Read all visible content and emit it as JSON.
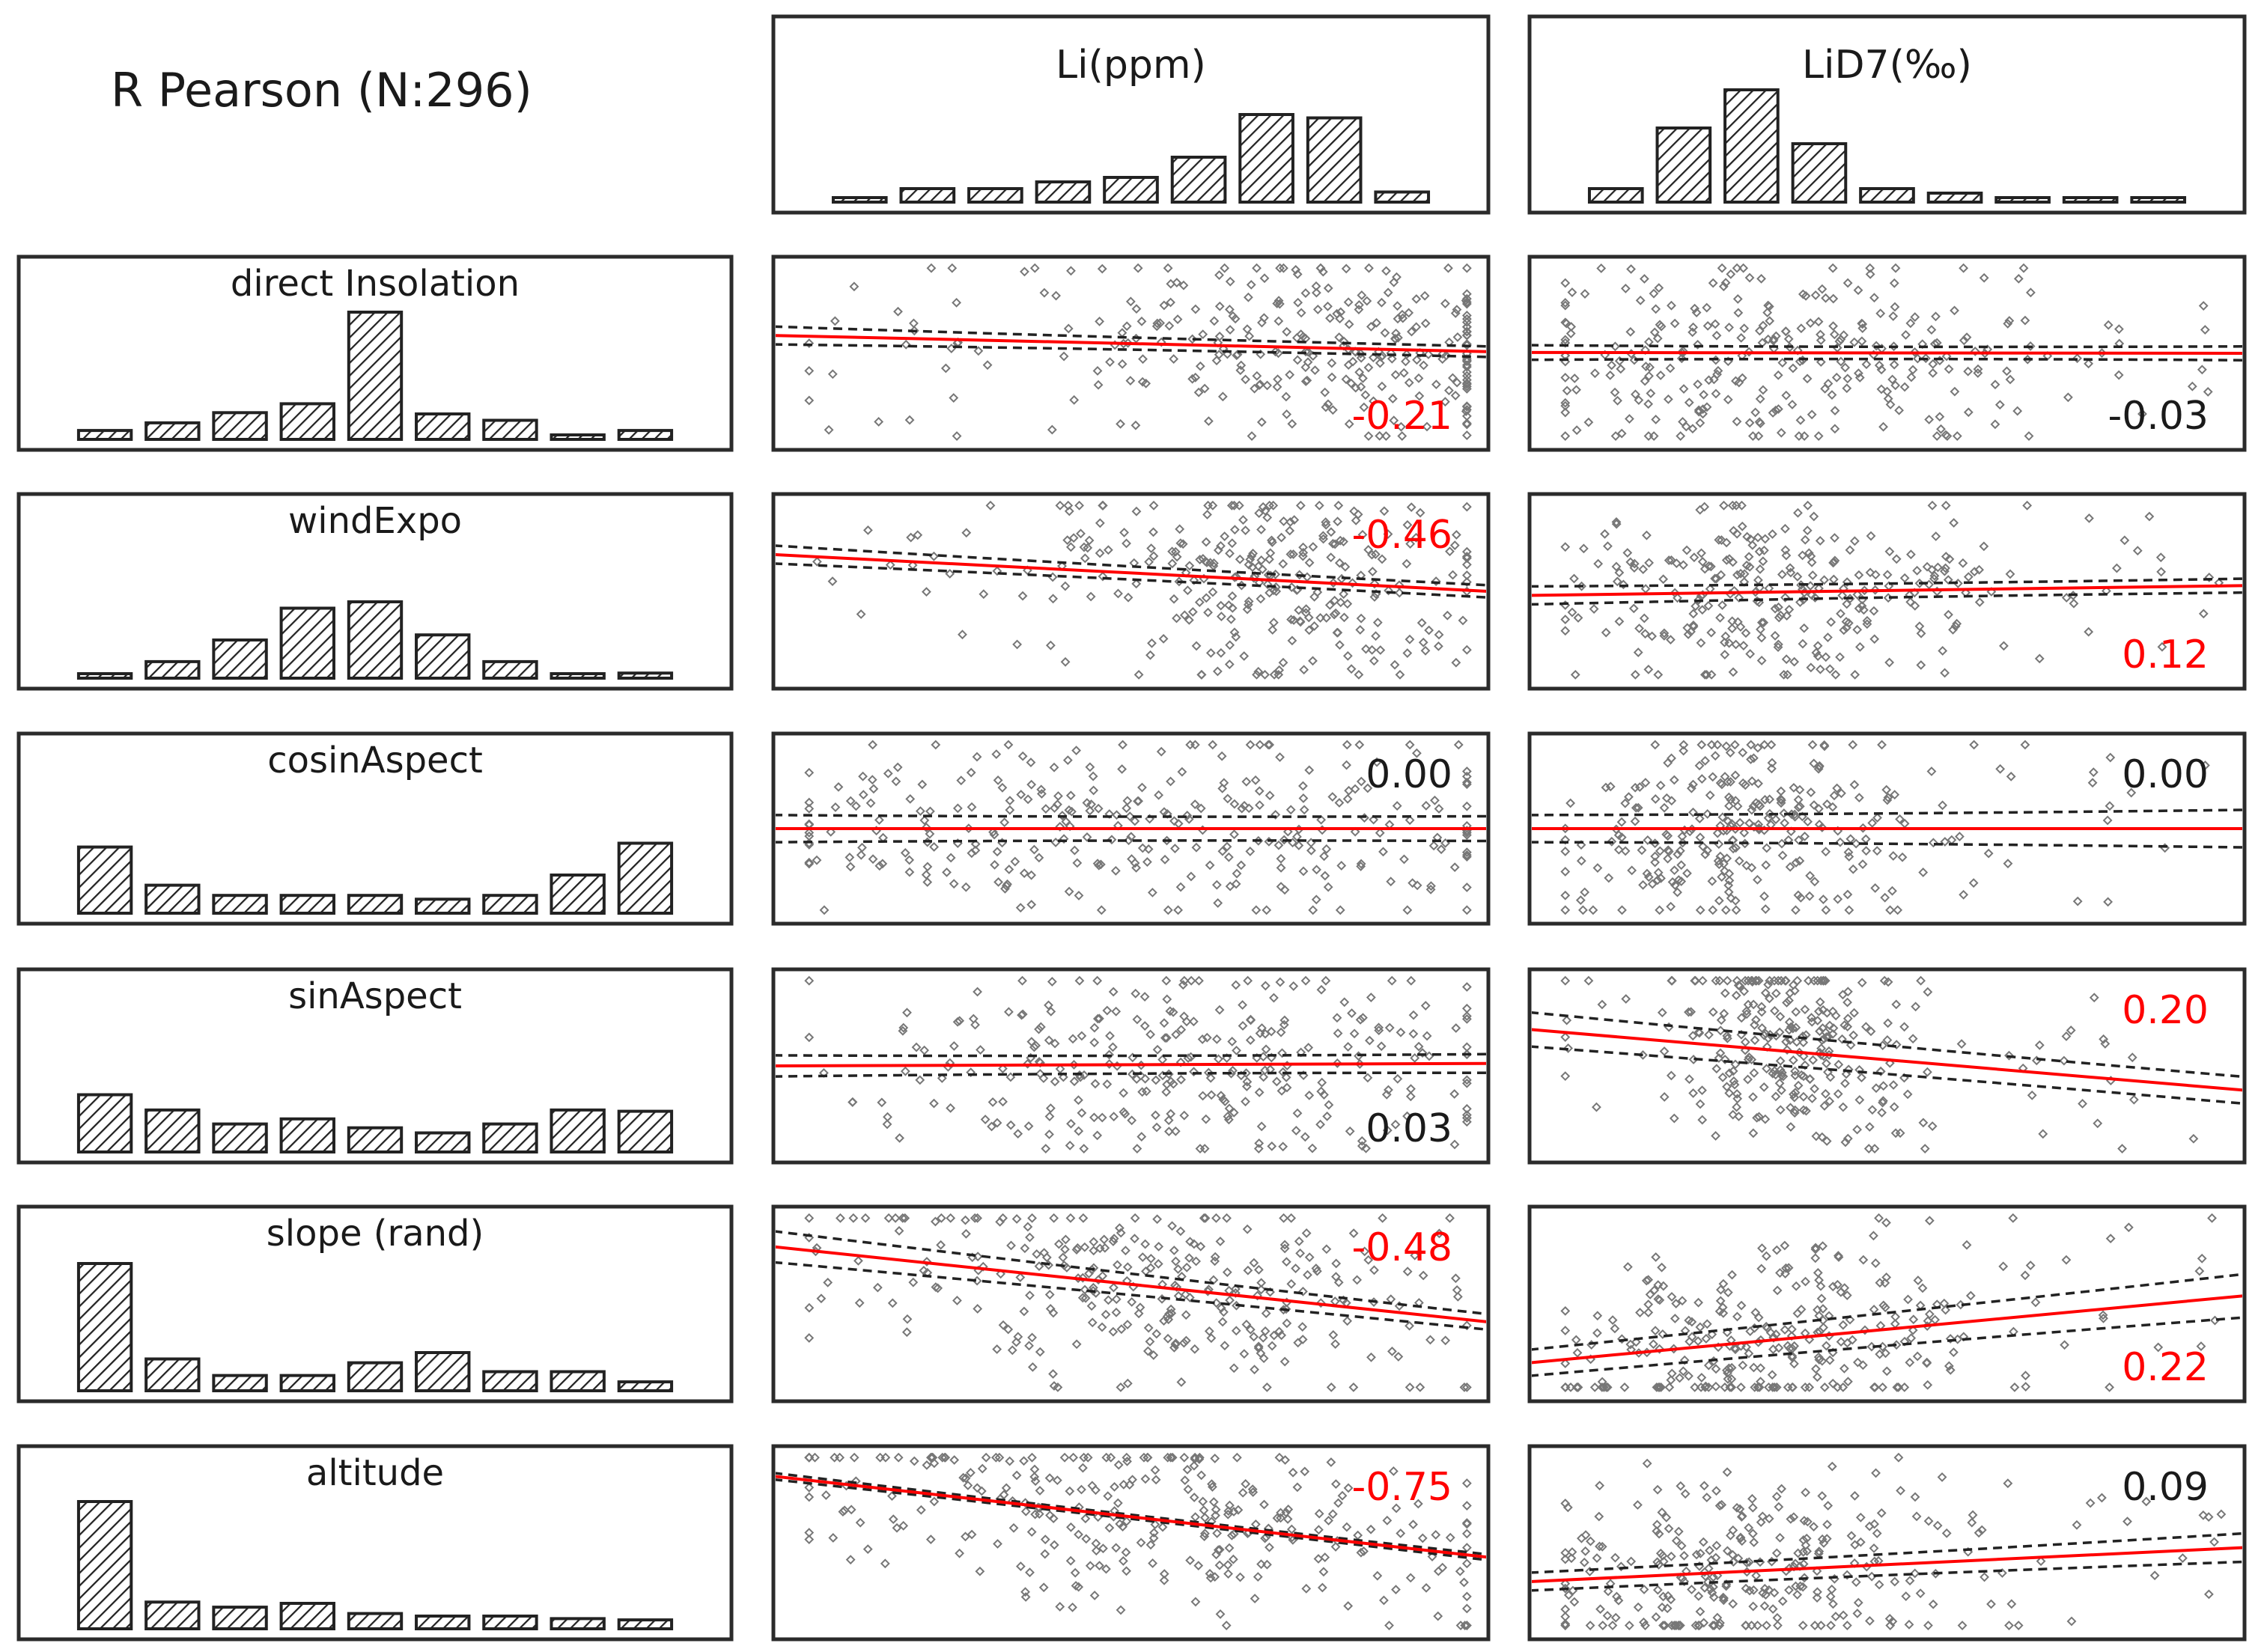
{
  "chart_data": {
    "type": "scatter-matrix",
    "title": "R Pearson (N:296)",
    "n": 296,
    "colors": {
      "panel_border": "#2b2b2b",
      "regression": "#ff0000",
      "significant": "#ff0000",
      "not_significant": "#1a1a1a",
      "points": "#777777",
      "bars": "#222222"
    },
    "response_variables": [
      {
        "name": "Li(ppm)",
        "histogram": [
          0.04,
          0.12,
          0.12,
          0.18,
          0.22,
          0.4,
          0.78,
          0.75,
          0.09
        ]
      },
      {
        "name": "LiD7(‰)",
        "histogram": [
          0.12,
          0.66,
          1.0,
          0.52,
          0.12,
          0.08,
          0.02,
          0.02,
          0.02
        ]
      }
    ],
    "predictors": [
      {
        "name": "direct Insolation",
        "histogram": [
          0.07,
          0.13,
          0.21,
          0.28,
          1.0,
          0.2,
          0.15,
          0.03,
          0.07
        ],
        "correlations": [
          {
            "r": "-0.21",
            "significant": true,
            "cx": 0.78,
            "spread": 0.6,
            "label_pos": "bottom-right",
            "regression": [
              0.22,
              -0.2
            ],
            "ci": [
              0.1,
              0.05
            ]
          },
          {
            "r": "-0.03",
            "significant": false,
            "cx": 0.33,
            "spread": 0.7,
            "label_pos": "bottom-right",
            "regression": [
              0.01,
              -0.01
            ],
            "ci": [
              0.08,
              0.07
            ]
          }
        ]
      },
      {
        "name": "windExpo",
        "histogram": [
          0.03,
          0.13,
          0.3,
          0.55,
          0.6,
          0.34,
          0.13,
          0.01,
          0.04
        ],
        "correlations": [
          {
            "r": "-0.46",
            "significant": true,
            "cx": 0.7,
            "spread": 0.55,
            "label_pos": "top-right",
            "regression": [
              0.45,
              -0.45
            ],
            "ci": [
              0.1,
              0.06
            ]
          },
          {
            "r": "0.12",
            "significant": true,
            "cx": 0.35,
            "spread": 0.5,
            "label_pos": "bottom-right",
            "regression": [
              -0.05,
              0.12
            ],
            "ci": [
              0.1,
              0.07
            ]
          }
        ]
      },
      {
        "name": "cosinAspect",
        "histogram": [
          0.52,
          0.22,
          0.14,
          0.14,
          0.14,
          0.11,
          0.14,
          0.3,
          0.55
        ],
        "correlations": [
          {
            "r": "0.00",
            "significant": false,
            "cx": 0.55,
            "spread": 0.9,
            "label_pos": "top-right",
            "regression": [
              0.0,
              0.0
            ],
            "ci": [
              0.16,
              0.14
            ]
          },
          {
            "r": "0.00",
            "significant": false,
            "cx": 0.3,
            "spread": 0.4,
            "label_pos": "top-right",
            "regression": [
              0.0,
              0.0
            ],
            "ci": [
              0.16,
              0.22
            ]
          }
        ]
      },
      {
        "name": "sinAspect",
        "histogram": [
          0.45,
          0.33,
          0.22,
          0.26,
          0.19,
          0.15,
          0.22,
          0.33,
          0.32
        ],
        "correlations": [
          {
            "r": "0.03",
            "significant": false,
            "cx": 0.6,
            "spread": 0.8,
            "label_pos": "bottom-right",
            "regression": [
              0.0,
              0.03
            ],
            "ci": [
              0.12,
              0.1
            ]
          },
          {
            "r": "0.20",
            "significant": true,
            "cx": 0.38,
            "spread": 0.3,
            "label_pos": "top-right",
            "regression": [
              0.45,
              -0.75
            ],
            "ci": [
              0.2,
              0.15
            ]
          }
        ]
      },
      {
        "name": "slope (rand)",
        "histogram": [
          1.0,
          0.25,
          0.12,
          0.12,
          0.22,
          0.3,
          0.15,
          0.15,
          0.07
        ],
        "correlations": [
          {
            "r": "-0.48",
            "significant": true,
            "cx": 0.55,
            "spread": 0.8,
            "label_pos": "top-right",
            "regression": [
              0.7,
              -0.92
            ],
            "ci": [
              0.18,
              0.08
            ]
          },
          {
            "r": "0.22",
            "significant": true,
            "cx": 0.35,
            "spread": 0.55,
            "label_pos": "bottom-right",
            "regression": [
              -0.72,
              0.82
            ],
            "ci": [
              0.15,
              0.25
            ]
          }
        ]
      },
      {
        "name": "altitude",
        "histogram": [
          1.0,
          0.21,
          0.17,
          0.2,
          0.12,
          0.1,
          0.1,
          0.08,
          0.07
        ],
        "correlations": [
          {
            "r": "-0.75",
            "significant": true,
            "cx": 0.55,
            "spread": 0.9,
            "label_pos": "top-right",
            "regression": [
              0.82,
              -1.0
            ],
            "ci": [
              0.03,
              0.02
            ]
          },
          {
            "r": "0.09",
            "significant": false,
            "cx": 0.3,
            "spread": 0.5,
            "label_pos": "top-right",
            "regression": [
              -0.48,
              0.42
            ],
            "ci": [
              0.1,
              0.16
            ]
          }
        ]
      }
    ]
  }
}
